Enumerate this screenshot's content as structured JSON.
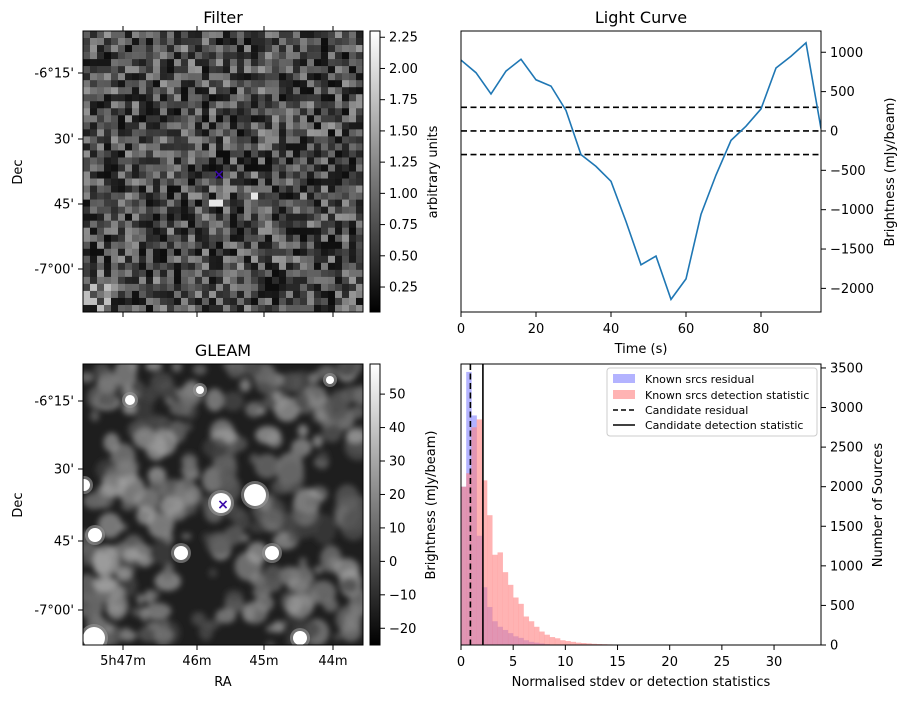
{
  "colors": {
    "line": "#1f77b4",
    "residual_hist": "#8080ff",
    "detection_hist": "#ff8080",
    "marker": "#3a0aa8"
  },
  "chart_data": [
    {
      "type": "heatmap",
      "title": "Filter",
      "ylabel": "Dec",
      "ytick_labels": [
        "-6°15'",
        "30'",
        "45'",
        "-7°00'"
      ],
      "colorbar": {
        "label": "arbitrary units",
        "range": [
          0.05,
          2.3
        ],
        "tick_labels": [
          "0.25",
          "0.50",
          "0.75",
          "1.00",
          "1.25",
          "1.50",
          "1.75",
          "2.00",
          "2.25"
        ]
      },
      "marker": "x"
    },
    {
      "type": "line",
      "title": "Light Curve",
      "xlabel": "Time (s)",
      "ylabel": "Brightness (mJy/beam)",
      "xlim": [
        0,
        96
      ],
      "ylim": [
        -2300,
        1270
      ],
      "x_ticks": [
        0,
        20,
        40,
        60,
        80
      ],
      "y_ticks": [
        -2000,
        -1500,
        -1000,
        -500,
        0,
        500,
        1000
      ],
      "x": [
        0,
        4,
        8,
        12,
        16,
        20,
        24,
        28,
        32,
        36,
        40,
        44,
        48,
        52,
        56,
        60,
        64,
        68,
        72,
        76,
        80,
        84,
        88,
        92,
        96
      ],
      "y": [
        900,
        740,
        470,
        760,
        910,
        650,
        570,
        260,
        -300,
        -450,
        -640,
        -1150,
        -1700,
        -1590,
        -2140,
        -1880,
        -1060,
        -560,
        -120,
        60,
        280,
        800,
        950,
        1120,
        30
      ],
      "hlines": [
        300,
        0,
        -300
      ]
    },
    {
      "type": "heatmap",
      "title": "GLEAM",
      "xlabel": "RA",
      "ylabel": "Dec",
      "xtick_labels": [
        "5h47m",
        "46m",
        "45m",
        "44m"
      ],
      "ytick_labels": [
        "-6°15'",
        "30'",
        "45'",
        "-7°00'"
      ],
      "colorbar": {
        "label": "Brightness (mJy/beam)",
        "range": [
          -25,
          59
        ],
        "tick_labels": [
          "−20",
          "−10",
          "0",
          "10",
          "20",
          "30",
          "40",
          "50"
        ]
      },
      "marker": "x"
    },
    {
      "type": "bar",
      "xlabel": "Normalised stdev or detection statistics",
      "ylabel": "Number of Sources",
      "xlim": [
        0,
        34.5
      ],
      "ylim": [
        0,
        3550
      ],
      "x_ticks": [
        0,
        5,
        10,
        15,
        20,
        25,
        30
      ],
      "y_ticks": [
        0,
        500,
        1000,
        1500,
        2000,
        2500,
        3000,
        3500
      ],
      "bin_width": 0.5,
      "series": [
        {
          "name": "Known srcs residual",
          "bin_start": 0,
          "values": [
            2000,
            3450,
            2900,
            1380,
            730,
            480,
            300,
            230,
            190,
            150,
            110,
            90,
            60,
            40,
            30,
            20,
            10,
            5
          ]
        },
        {
          "name": "Known srcs detection statistic",
          "bin_start": 0,
          "values": [
            2000,
            2170,
            2750,
            2850,
            2080,
            1640,
            1140,
            1170,
            920,
            760,
            600,
            520,
            360,
            300,
            230,
            170,
            130,
            100,
            85,
            60,
            50,
            40,
            30,
            25,
            20,
            15,
            12,
            10,
            8,
            6,
            5,
            4,
            3,
            3,
            2,
            2,
            2,
            1,
            1,
            1,
            1,
            1,
            1,
            1,
            1,
            1,
            1,
            1,
            1,
            1,
            1,
            1,
            1,
            1,
            1,
            1,
            1,
            1,
            1,
            1,
            1,
            1,
            1,
            1,
            1
          ]
        },
        {
          "name": "Candidate residual",
          "vline": 0.9
        },
        {
          "name": "Candidate detection statistic",
          "vline": 2.1
        }
      ],
      "legend": "top-right"
    }
  ]
}
